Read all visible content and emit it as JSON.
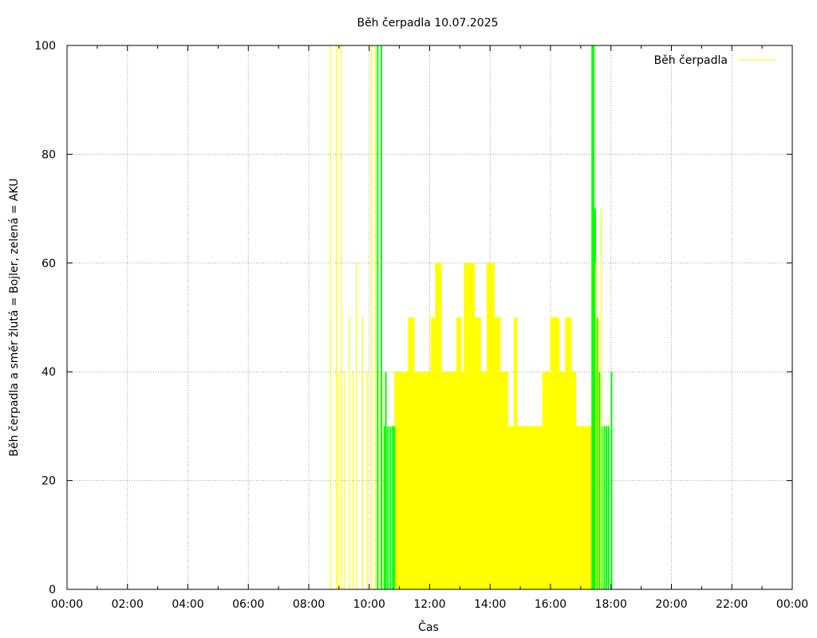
{
  "chart_data": {
    "type": "bar",
    "title": "Běh čerpadla 10.07.2025",
    "xlabel": "Čas",
    "ylabel": "Běh čerpadla a směr žlutá = Bojler, zelená = AKU",
    "x_unit": "hours",
    "xlim": [
      0,
      24
    ],
    "ylim": [
      0,
      100
    ],
    "grid": true,
    "legend_position": "top-right",
    "x_tick_labels": [
      "00:00",
      "02:00",
      "04:00",
      "06:00",
      "08:00",
      "10:00",
      "12:00",
      "14:00",
      "16:00",
      "18:00",
      "20:00",
      "22:00",
      "00:00"
    ],
    "y_tick_labels": [
      "0",
      "20",
      "40",
      "60",
      "80",
      "100"
    ],
    "y_ticks": [
      0,
      20,
      40,
      60,
      80,
      100
    ],
    "series": [
      {
        "name": "Běh čerpadla",
        "color": "#ffff00",
        "description_of_direction": "Bojler",
        "spikes": [
          {
            "x": 8.72,
            "y": 100
          },
          {
            "x": 8.92,
            "y": 100
          },
          {
            "x": 8.97,
            "y": 40
          },
          {
            "x": 9.08,
            "y": 100
          },
          {
            "x": 9.17,
            "y": 40
          },
          {
            "x": 9.35,
            "y": 50
          },
          {
            "x": 9.47,
            "y": 40
          },
          {
            "x": 9.58,
            "y": 60
          },
          {
            "x": 9.78,
            "y": 50
          },
          {
            "x": 9.93,
            "y": 40
          },
          {
            "x": 10.08,
            "y": 100
          },
          {
            "x": 10.2,
            "y": 100
          },
          {
            "x": 10.3,
            "y": 40
          },
          {
            "x": 10.43,
            "y": 40
          }
        ],
        "profile": [
          [
            10.85,
            40
          ],
          [
            11.3,
            50
          ],
          [
            11.5,
            40
          ],
          [
            11.9,
            40
          ],
          [
            12.05,
            50
          ],
          [
            12.2,
            60
          ],
          [
            12.4,
            40
          ],
          [
            12.6,
            40
          ],
          [
            12.9,
            50
          ],
          [
            13.05,
            40
          ],
          [
            13.15,
            60
          ],
          [
            13.5,
            50
          ],
          [
            13.7,
            40
          ],
          [
            13.9,
            60
          ],
          [
            14.15,
            50
          ],
          [
            14.35,
            40
          ],
          [
            14.6,
            30
          ],
          [
            14.8,
            50
          ],
          [
            14.9,
            30
          ],
          [
            15.6,
            30
          ],
          [
            15.75,
            40
          ],
          [
            16.0,
            50
          ],
          [
            16.3,
            40
          ],
          [
            16.5,
            50
          ],
          [
            16.7,
            40
          ],
          [
            16.85,
            30
          ],
          [
            17.0,
            30
          ],
          [
            17.35,
            30
          ]
        ]
      },
      {
        "name": "AKU",
        "color": "#00ff00",
        "description_of_direction": "AKU",
        "spikes": [
          {
            "x": 10.28,
            "y": 100
          },
          {
            "x": 10.4,
            "y": 100
          },
          {
            "x": 10.5,
            "y": 30
          },
          {
            "x": 10.55,
            "y": 40
          },
          {
            "x": 10.62,
            "y": 30
          },
          {
            "x": 10.7,
            "y": 30
          },
          {
            "x": 10.78,
            "y": 30
          },
          {
            "x": 10.83,
            "y": 30
          },
          {
            "x": 17.38,
            "y": 100
          },
          {
            "x": 17.43,
            "y": 100
          },
          {
            "x": 17.48,
            "y": 70
          },
          {
            "x": 17.55,
            "y": 50
          },
          {
            "x": 17.62,
            "y": 40
          },
          {
            "x": 17.7,
            "y": 30
          },
          {
            "x": 17.78,
            "y": 30
          },
          {
            "x": 17.85,
            "y": 30
          },
          {
            "x": 17.92,
            "y": 30
          },
          {
            "x": 18.02,
            "y": 40
          }
        ]
      }
    ],
    "extra_yellow_spikes": [
      {
        "x": 17.5,
        "y": 60
      },
      {
        "x": 17.58,
        "y": 50
      },
      {
        "x": 17.68,
        "y": 70
      }
    ]
  }
}
